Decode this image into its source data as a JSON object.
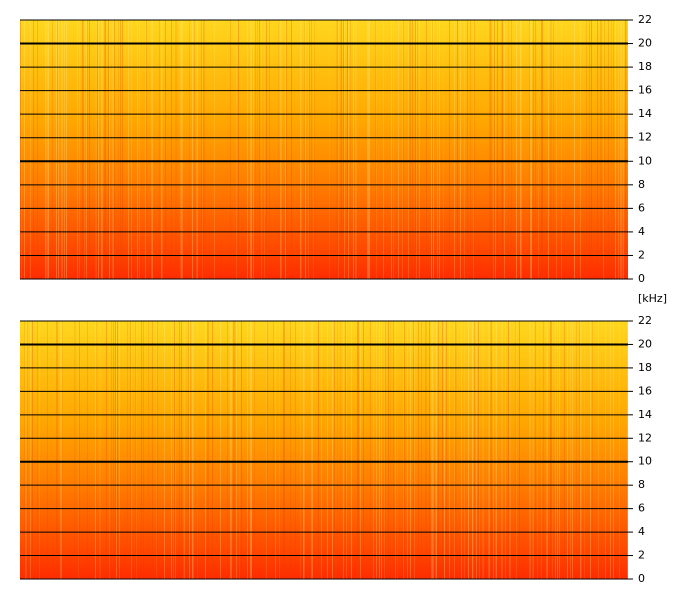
{
  "chart_data": [
    {
      "type": "spectrogram",
      "ylabel": "[kHz]",
      "ylim": [
        0,
        22
      ],
      "yticks": [
        0,
        2,
        4,
        6,
        8,
        10,
        12,
        14,
        16,
        18,
        20,
        22
      ],
      "major_yticks": [
        10,
        20
      ],
      "grid": true
    },
    {
      "type": "spectrogram",
      "ylim": [
        0,
        22
      ],
      "yticks": [
        0,
        2,
        4,
        6,
        8,
        10,
        12,
        14,
        16,
        18,
        20,
        22
      ],
      "major_yticks": [
        10,
        20
      ],
      "grid": true
    }
  ]
}
